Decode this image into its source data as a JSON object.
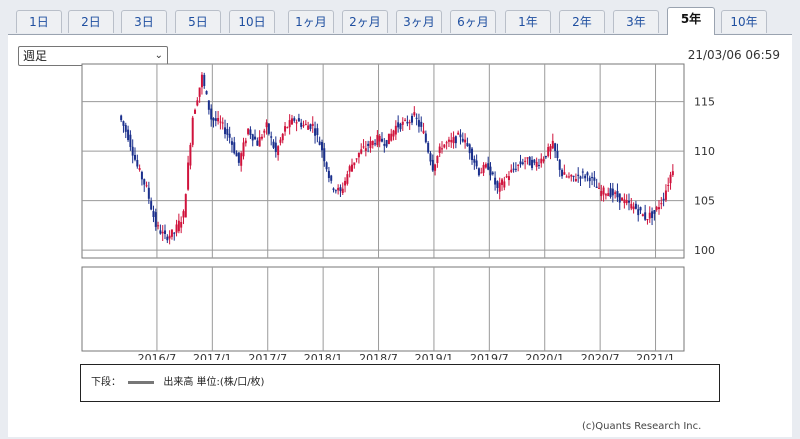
{
  "tabs": [
    "1日",
    "2日",
    "3日",
    "5日",
    "10日",
    "1ヶ月",
    "2ヶ月",
    "3ヶ月",
    "6ヶ月",
    "1年",
    "2年",
    "3年",
    "5年",
    "10年"
  ],
  "active_tab": "5年",
  "period_select": {
    "value": "週足"
  },
  "timestamp": "21/03/06 06:59",
  "legend": {
    "prefix": "下段：",
    "text": "出来高 単位:(株/口/枚)"
  },
  "credit": "(c)Quants Research Inc.",
  "colors": {
    "up": "#d0133c",
    "down": "#1a2f8c",
    "grid": "#9a9a9a",
    "accent": "#1f4fa0"
  },
  "chart_data": {
    "type": "line",
    "xlabel": "",
    "ylabel": "",
    "x_ticks": [
      "2016/7",
      "2017/1",
      "2017/7",
      "2018/1",
      "2018/7",
      "2019/1",
      "2019/7",
      "2020/1",
      "2020/7",
      "2021/1"
    ],
    "y_ticks": [
      100,
      105,
      110,
      115
    ],
    "ylim": [
      99.2,
      118.8
    ],
    "x_range": [
      "2016/03",
      "2021/03"
    ],
    "series": [
      {
        "x": [
          "2016/03",
          "2016/04",
          "2016/05",
          "2016/06",
          "2016/07",
          "2016/08",
          "2016/09",
          "2016/10",
          "2016/11",
          "2016/12",
          "2017/01",
          "2017/02",
          "2017/03",
          "2017/04",
          "2017/05",
          "2017/06",
          "2017/07",
          "2017/08",
          "2017/09",
          "2017/10",
          "2017/11",
          "2017/12",
          "2018/01",
          "2018/02",
          "2018/03",
          "2018/04",
          "2018/05",
          "2018/06",
          "2018/07",
          "2018/08",
          "2018/09",
          "2018/10",
          "2018/11",
          "2018/12",
          "2019/01",
          "2019/02",
          "2019/03",
          "2019/04",
          "2019/05",
          "2019/06",
          "2019/07",
          "2019/08",
          "2019/09",
          "2019/10",
          "2019/11",
          "2019/12",
          "2020/01",
          "2020/02",
          "2020/03",
          "2020/04",
          "2020/05",
          "2020/06",
          "2020/07",
          "2020/08",
          "2020/09",
          "2020/10",
          "2020/11",
          "2020/12",
          "2021/01",
          "2021/02",
          "2021/03"
        ],
        "values": [
          113.6,
          111.5,
          108.4,
          106.2,
          102.5,
          101.3,
          101.8,
          103.6,
          113.5,
          117.5,
          113.3,
          112.8,
          111.4,
          108.8,
          112.2,
          110.8,
          112.5,
          109.8,
          112.3,
          113.2,
          112.6,
          112.6,
          110.2,
          106.6,
          105.8,
          108.3,
          109.8,
          110.6,
          111.2,
          110.9,
          112.5,
          112.8,
          113.5,
          111.8,
          108.4,
          110.6,
          110.9,
          111.6,
          110.1,
          107.9,
          108.5,
          106.1,
          107.4,
          108.4,
          109.1,
          108.6,
          109.4,
          110.6,
          107.6,
          107.2,
          107.6,
          107.4,
          105.9,
          105.9,
          105.4,
          104.7,
          104.2,
          103.3,
          103.7,
          105.4,
          108.3
        ]
      }
    ]
  }
}
